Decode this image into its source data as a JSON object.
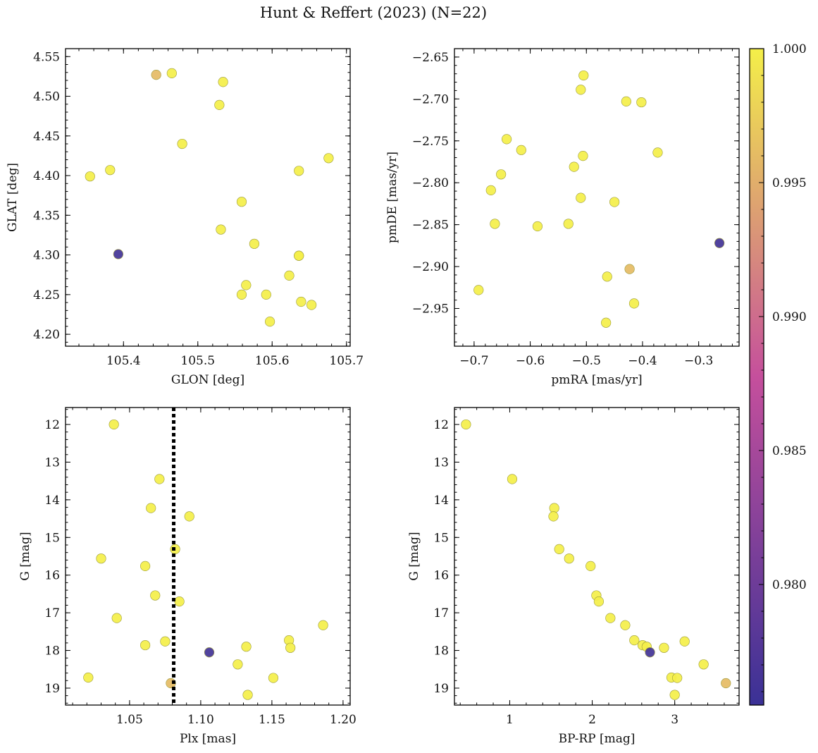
{
  "figure": {
    "title": "Hunt & Reffert (2023) (N=22)"
  },
  "colors": {
    "low": "#3a3196",
    "mid": "#c54f9c",
    "high": "#f4ef49",
    "ring": "#9b9b3c",
    "dotted_line": "#000000"
  },
  "chart_data": [
    {
      "type": "scatter",
      "id": "sky",
      "xlabel": "GLON [deg]",
      "ylabel": "GLAT [deg]",
      "xlim": [
        105.322,
        105.705
      ],
      "ylim": [
        4.185,
        4.56
      ],
      "xticks": [
        105.4,
        105.5,
        105.6,
        105.7
      ],
      "xtick_labels": [
        "105.4",
        "105.5",
        "105.6",
        "105.7"
      ],
      "yticks": [
        4.2,
        4.25,
        4.3,
        4.35,
        4.4,
        4.45,
        4.5,
        4.55
      ],
      "ytick_labels": [
        "4.20",
        "4.25",
        "4.30",
        "4.35",
        "4.40",
        "4.45",
        "4.50",
        "4.55"
      ],
      "x_minor_step": 0.02,
      "y_minor_step": 0.01,
      "invert_y": false,
      "points": [
        {
          "x": 105.444,
          "y": 4.527,
          "c": 0.996
        },
        {
          "x": 105.465,
          "y": 4.529,
          "c": 1.0
        },
        {
          "x": 105.534,
          "y": 4.518,
          "c": 1.0
        },
        {
          "x": 105.529,
          "y": 4.489,
          "c": 1.0
        },
        {
          "x": 105.479,
          "y": 4.44,
          "c": 1.0
        },
        {
          "x": 105.676,
          "y": 4.422,
          "c": 1.0
        },
        {
          "x": 105.355,
          "y": 4.399,
          "c": 1.0
        },
        {
          "x": 105.382,
          "y": 4.407,
          "c": 1.0
        },
        {
          "x": 105.636,
          "y": 4.406,
          "c": 1.0
        },
        {
          "x": 105.559,
          "y": 4.367,
          "c": 1.0
        },
        {
          "x": 105.531,
          "y": 4.332,
          "c": 1.0
        },
        {
          "x": 105.576,
          "y": 4.314,
          "c": 1.0
        },
        {
          "x": 105.393,
          "y": 4.301,
          "c": 0.9762
        },
        {
          "x": 105.636,
          "y": 4.299,
          "c": 1.0
        },
        {
          "x": 105.623,
          "y": 4.274,
          "c": 1.0
        },
        {
          "x": 105.565,
          "y": 4.262,
          "c": 1.0
        },
        {
          "x": 105.559,
          "y": 4.25,
          "c": 1.0
        },
        {
          "x": 105.592,
          "y": 4.25,
          "c": 1.0
        },
        {
          "x": 105.639,
          "y": 4.241,
          "c": 1.0
        },
        {
          "x": 105.653,
          "y": 4.237,
          "c": 1.0
        },
        {
          "x": 105.597,
          "y": 4.216,
          "c": 1.0
        },
        {
          "x": 105.636,
          "y": 4.299,
          "c": 1.0
        }
      ]
    },
    {
      "type": "scatter",
      "id": "pm",
      "xlabel": "pmRA [mas/yr]",
      "ylabel": "pmDE [mas/yr]",
      "xlim": [
        -0.735,
        -0.228
      ],
      "ylim": [
        -2.995,
        -2.64
      ],
      "xticks": [
        -0.7,
        -0.6,
        -0.5,
        -0.4,
        -0.3
      ],
      "xtick_labels": [
        "−0.7",
        "−0.6",
        "−0.5",
        "−0.4",
        "−0.3"
      ],
      "yticks": [
        -2.95,
        -2.9,
        -2.85,
        -2.8,
        -2.75,
        -2.7,
        -2.65
      ],
      "ytick_labels": [
        "−2.95",
        "−2.90",
        "−2.85",
        "−2.80",
        "−2.75",
        "−2.70",
        "−2.65"
      ],
      "x_minor_step": 0.02,
      "y_minor_step": 0.01,
      "invert_y": false,
      "points": [
        {
          "x": -0.505,
          "y": -2.672,
          "c": 1.0
        },
        {
          "x": -0.51,
          "y": -2.689,
          "c": 1.0
        },
        {
          "x": -0.429,
          "y": -2.703,
          "c": 1.0
        },
        {
          "x": -0.402,
          "y": -2.704,
          "c": 1.0
        },
        {
          "x": -0.642,
          "y": -2.748,
          "c": 1.0
        },
        {
          "x": -0.616,
          "y": -2.761,
          "c": 1.0
        },
        {
          "x": -0.506,
          "y": -2.768,
          "c": 1.0
        },
        {
          "x": -0.373,
          "y": -2.764,
          "c": 1.0
        },
        {
          "x": -0.522,
          "y": -2.781,
          "c": 1.0
        },
        {
          "x": -0.652,
          "y": -2.79,
          "c": 1.0
        },
        {
          "x": -0.67,
          "y": -2.809,
          "c": 1.0
        },
        {
          "x": -0.51,
          "y": -2.818,
          "c": 1.0
        },
        {
          "x": -0.45,
          "y": -2.823,
          "c": 1.0
        },
        {
          "x": -0.663,
          "y": -2.849,
          "c": 1.0
        },
        {
          "x": -0.587,
          "y": -2.852,
          "c": 1.0
        },
        {
          "x": -0.532,
          "y": -2.849,
          "c": 1.0
        },
        {
          "x": -0.263,
          "y": -2.872,
          "c": 0.9762
        },
        {
          "x": -0.423,
          "y": -2.903,
          "c": 0.996
        },
        {
          "x": -0.463,
          "y": -2.912,
          "c": 1.0
        },
        {
          "x": -0.692,
          "y": -2.928,
          "c": 1.0
        },
        {
          "x": -0.415,
          "y": -2.944,
          "c": 1.0
        },
        {
          "x": -0.465,
          "y": -2.967,
          "c": 1.0
        }
      ]
    },
    {
      "type": "scatter",
      "id": "plx",
      "xlabel": "Plx [mas]",
      "ylabel": "G [mag]",
      "xlim": [
        1.005,
        1.205
      ],
      "ylim": [
        19.45,
        11.55
      ],
      "xticks": [
        1.05,
        1.1,
        1.15,
        1.2
      ],
      "xtick_labels": [
        "1.05",
        "1.10",
        "1.15",
        "1.20"
      ],
      "yticks": [
        12,
        13,
        14,
        15,
        16,
        17,
        18,
        19
      ],
      "ytick_labels": [
        "12",
        "13",
        "14",
        "15",
        "16",
        "17",
        "18",
        "19"
      ],
      "x_minor_step": 0.01,
      "y_minor_step": 0.2,
      "invert_y": true,
      "vline": 1.081,
      "points": [
        {
          "x": 1.039,
          "y": 12.0,
          "c": 1.0
        },
        {
          "x": 1.071,
          "y": 13.45,
          "c": 1.0
        },
        {
          "x": 1.065,
          "y": 14.22,
          "c": 1.0
        },
        {
          "x": 1.092,
          "y": 14.44,
          "c": 1.0
        },
        {
          "x": 1.082,
          "y": 15.31,
          "c": 1.0
        },
        {
          "x": 1.03,
          "y": 15.56,
          "c": 1.0
        },
        {
          "x": 1.061,
          "y": 15.76,
          "c": 1.0
        },
        {
          "x": 1.068,
          "y": 16.54,
          "c": 1.0
        },
        {
          "x": 1.085,
          "y": 16.7,
          "c": 1.0
        },
        {
          "x": 1.041,
          "y": 17.14,
          "c": 1.0
        },
        {
          "x": 1.186,
          "y": 17.33,
          "c": 1.0
        },
        {
          "x": 1.162,
          "y": 17.73,
          "c": 1.0
        },
        {
          "x": 1.075,
          "y": 17.76,
          "c": 1.0
        },
        {
          "x": 1.061,
          "y": 17.86,
          "c": 1.0
        },
        {
          "x": 1.132,
          "y": 17.9,
          "c": 1.0
        },
        {
          "x": 1.163,
          "y": 17.93,
          "c": 1.0
        },
        {
          "x": 1.106,
          "y": 18.05,
          "c": 0.9762
        },
        {
          "x": 1.126,
          "y": 18.37,
          "c": 1.0
        },
        {
          "x": 1.021,
          "y": 18.72,
          "c": 1.0
        },
        {
          "x": 1.151,
          "y": 18.73,
          "c": 1.0
        },
        {
          "x": 1.079,
          "y": 18.87,
          "c": 0.996
        },
        {
          "x": 1.133,
          "y": 19.18,
          "c": 1.0
        }
      ]
    },
    {
      "type": "scatter",
      "id": "cmd",
      "xlabel": "BP-RP [mag]",
      "ylabel": "G [mag]",
      "xlim": [
        0.33,
        3.78
      ],
      "ylim": [
        19.45,
        11.55
      ],
      "xticks": [
        1,
        2,
        3
      ],
      "xtick_labels": [
        "1",
        "2",
        "3"
      ],
      "yticks": [
        12,
        13,
        14,
        15,
        16,
        17,
        18,
        19
      ],
      "ytick_labels": [
        "12",
        "13",
        "14",
        "15",
        "16",
        "17",
        "18",
        "19"
      ],
      "x_minor_step": 0.2,
      "y_minor_step": 0.2,
      "invert_y": true,
      "points": [
        {
          "x": 0.47,
          "y": 12.0,
          "c": 1.0
        },
        {
          "x": 1.03,
          "y": 13.45,
          "c": 1.0
        },
        {
          "x": 1.54,
          "y": 14.22,
          "c": 1.0
        },
        {
          "x": 1.53,
          "y": 14.44,
          "c": 1.0
        },
        {
          "x": 1.6,
          "y": 15.31,
          "c": 1.0
        },
        {
          "x": 1.72,
          "y": 15.56,
          "c": 1.0
        },
        {
          "x": 1.98,
          "y": 15.76,
          "c": 1.0
        },
        {
          "x": 2.05,
          "y": 16.54,
          "c": 1.0
        },
        {
          "x": 2.08,
          "y": 16.7,
          "c": 1.0
        },
        {
          "x": 2.22,
          "y": 17.14,
          "c": 1.0
        },
        {
          "x": 2.4,
          "y": 17.33,
          "c": 1.0
        },
        {
          "x": 2.51,
          "y": 17.73,
          "c": 1.0
        },
        {
          "x": 3.12,
          "y": 17.76,
          "c": 1.0
        },
        {
          "x": 2.61,
          "y": 17.86,
          "c": 1.0
        },
        {
          "x": 2.66,
          "y": 17.9,
          "c": 1.0
        },
        {
          "x": 2.87,
          "y": 17.93,
          "c": 1.0
        },
        {
          "x": 2.7,
          "y": 18.05,
          "c": 0.9762
        },
        {
          "x": 3.35,
          "y": 18.37,
          "c": 1.0
        },
        {
          "x": 2.96,
          "y": 18.72,
          "c": 1.0
        },
        {
          "x": 3.03,
          "y": 18.73,
          "c": 1.0
        },
        {
          "x": 3.62,
          "y": 18.87,
          "c": 0.996
        },
        {
          "x": 3.0,
          "y": 19.18,
          "c": 1.0
        }
      ]
    }
  ],
  "colorbar": {
    "vmin": 0.9755,
    "vmax": 1.0,
    "ticks": [
      0.98,
      0.985,
      0.99,
      0.995,
      1.0
    ],
    "tick_labels": [
      "0.980",
      "0.985",
      "0.990",
      "0.995",
      "1.000"
    ],
    "minor_step": 0.001
  }
}
